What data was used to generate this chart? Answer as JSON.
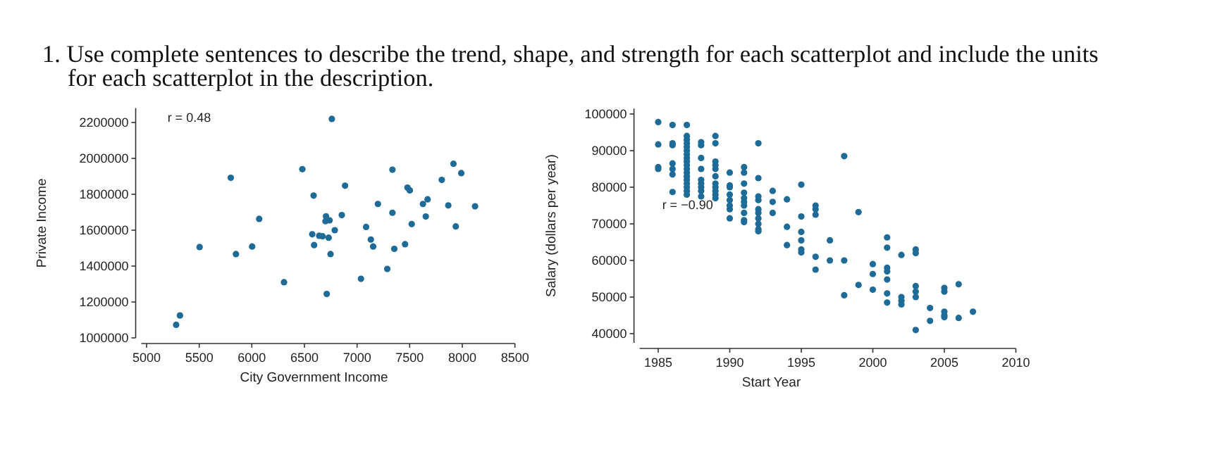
{
  "chart_data": [
    {
      "type": "scatter",
      "title": "1.  Use complete sentences to describe the trend, shape, and strength for each scatterplot and include the units for each scatterplot in the description.",
      "xlabel": "City Government Income",
      "ylabel": "Private Income",
      "xlim": [
        4950,
        8500
      ],
      "xticks": [
        5000,
        5500,
        6000,
        6500,
        7000,
        7500,
        8000,
        8500
      ],
      "ylim": [
        1000000,
        2280000
      ],
      "yticks": [
        1000000,
        1200000,
        1400000,
        1600000,
        1800000,
        2000000,
        2200000
      ],
      "grid": false,
      "marker": "circle",
      "annotations": [
        "r = 0.48"
      ],
      "series": [
        {
          "color": "#1f6b97",
          "x": [
            6760,
            6480,
            7336,
            7916,
            7990,
            5800,
            7805,
            6886,
            7479,
            7501,
            6587,
            7670,
            7626,
            7198,
            7867,
            8121,
            7336,
            6855,
            7653,
            6070,
            6705,
            6739,
            6700,
            7086,
            7938,
            7519,
            6788,
            6574,
            6640,
            6672,
            6730,
            7131,
            6592,
            5504,
            6003,
            7153,
            7354,
            7456,
            5849,
            6748,
            7287,
            6306,
            7037,
            6712,
            5317,
            5281
          ],
          "values": [
            2220000,
            1940000,
            1937000,
            1970000,
            1918000,
            1892000,
            1880000,
            1848000,
            1837000,
            1822000,
            1793000,
            1772000,
            1746000,
            1746000,
            1738000,
            1733000,
            1697000,
            1684000,
            1676000,
            1663000,
            1677000,
            1655000,
            1650000,
            1618000,
            1621000,
            1634000,
            1600000,
            1577000,
            1569000,
            1566000,
            1558000,
            1548000,
            1517000,
            1506000,
            1509000,
            1509000,
            1496000,
            1522000,
            1467000,
            1467000,
            1384000,
            1310000,
            1329000,
            1245000,
            1125000,
            1073000
          ]
        }
      ]
    },
    {
      "type": "scatter",
      "xlabel": "Start Year",
      "ylabel": "Salary (dollars per year)",
      "xlim": [
        1983.7,
        2010
      ],
      "xticks": [
        1985,
        1990,
        1995,
        2000,
        2005,
        2010
      ],
      "ylim": [
        37500,
        101500
      ],
      "yticks": [
        40000,
        50000,
        60000,
        70000,
        80000,
        90000,
        100000
      ],
      "grid": false,
      "marker": "circle",
      "annotations": [
        "r = −0.90"
      ],
      "series": [
        {
          "color": "#1f6b97",
          "x": [
            1985,
            1985,
            1985,
            1985,
            1986,
            1986,
            1986,
            1986,
            1986,
            1986,
            1986,
            1987,
            1987,
            1987,
            1987,
            1987,
            1987,
            1987,
            1987,
            1987,
            1987,
            1987,
            1987,
            1987,
            1987,
            1987,
            1987,
            1987,
            1987,
            1988,
            1988,
            1988,
            1988,
            1988,
            1988,
            1988,
            1988,
            1988,
            1989,
            1989,
            1989,
            1989,
            1989,
            1989,
            1989,
            1989,
            1989,
            1989,
            1989,
            1990,
            1990,
            1990,
            1990,
            1990,
            1990,
            1990,
            1990,
            1991,
            1991,
            1991,
            1991,
            1991,
            1991,
            1991,
            1991,
            1991,
            1991,
            1992,
            1992,
            1992,
            1992,
            1992,
            1992,
            1992,
            1992,
            1992,
            1992,
            1993,
            1993,
            1993,
            1994,
            1994,
            1994,
            1995,
            1995,
            1995,
            1995,
            1995,
            1995,
            1996,
            1996,
            1996,
            1996,
            1996,
            1997,
            1997,
            1998,
            1998,
            1998,
            1999,
            1999,
            2000,
            2000,
            2000,
            2001,
            2001,
            2001,
            2001,
            2001,
            2001,
            2001,
            2002,
            2002,
            2002,
            2002,
            2003,
            2003,
            2003,
            2003,
            2003,
            2003,
            2004,
            2004,
            2005,
            2005,
            2005,
            2005,
            2005,
            2006,
            2006,
            2007
          ],
          "values": [
            97800,
            91700,
            85500,
            85000,
            97000,
            92000,
            91500,
            86500,
            85000,
            83500,
            78700,
            97000,
            94000,
            93000,
            92000,
            91000,
            90000,
            89000,
            88000,
            87000,
            86000,
            85000,
            84000,
            83000,
            82000,
            81000,
            80000,
            79000,
            78000,
            92300,
            91500,
            88000,
            85000,
            82000,
            81000,
            80000,
            79000,
            77500,
            94000,
            92000,
            87000,
            86000,
            85000,
            83000,
            81000,
            80000,
            79000,
            78000,
            77000,
            84000,
            80500,
            80000,
            78000,
            76500,
            75000,
            74000,
            71500,
            85500,
            84000,
            81000,
            78500,
            77000,
            76000,
            75000,
            73000,
            71000,
            70500,
            92000,
            82500,
            77500,
            76500,
            74000,
            73000,
            71500,
            70000,
            68500,
            68000,
            79000,
            76000,
            73000,
            76700,
            69200,
            64200,
            80700,
            72000,
            67800,
            65500,
            63000,
            62200,
            75000,
            74000,
            72500,
            61000,
            57500,
            65500,
            60000,
            88500,
            60000,
            50500,
            73200,
            53300,
            59000,
            56300,
            52000,
            66300,
            63500,
            58000,
            57000,
            54800,
            51000,
            48500,
            61500,
            50000,
            49000,
            48000,
            63000,
            62000,
            53000,
            51500,
            50000,
            41000,
            47000,
            43500,
            52500,
            51500,
            46000,
            45000,
            44500,
            53500,
            44300,
            46000
          ]
        }
      ]
    }
  ]
}
